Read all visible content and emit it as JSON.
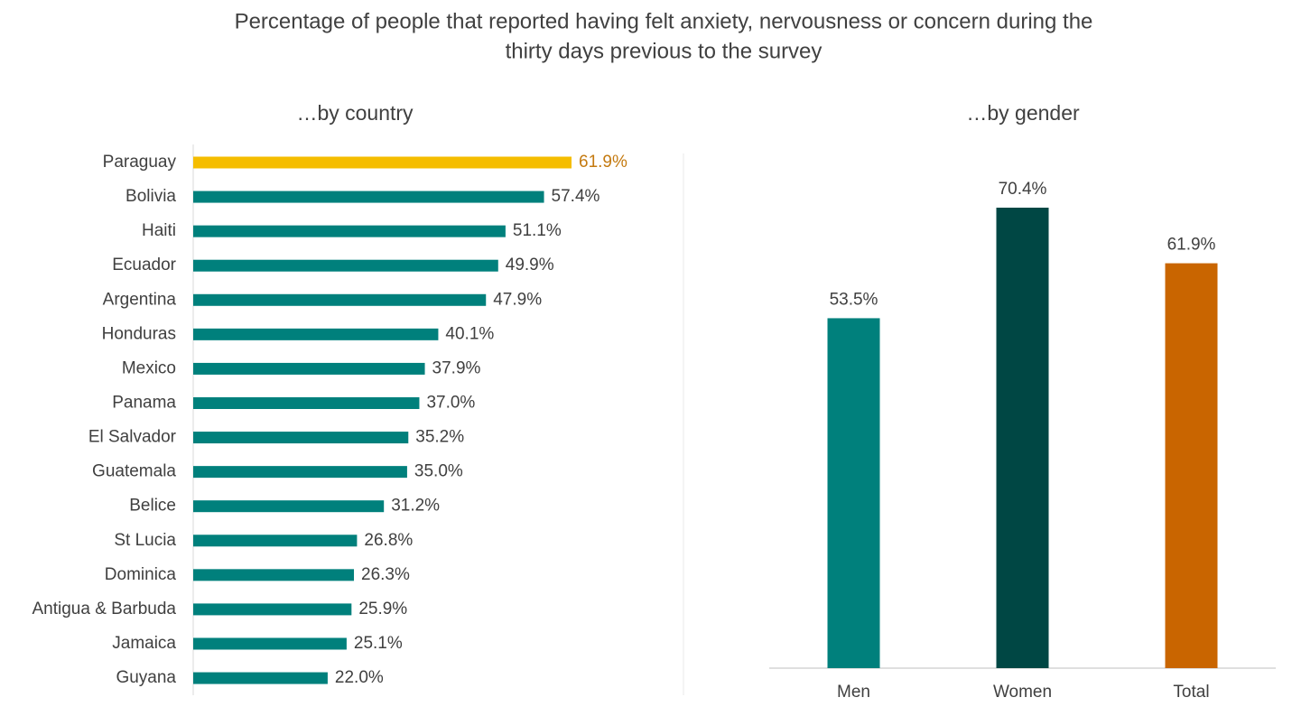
{
  "title": [
    "Percentage of people that reported having felt anxiety, nervousness or concern during the",
    "thirty days previous to the survey"
  ],
  "chart_data": [
    {
      "type": "barh",
      "subtitle": "…by country",
      "categories": [
        "Paraguay",
        "Bolivia",
        "Haiti",
        "Ecuador",
        "Argentina",
        "Honduras",
        "Mexico",
        "Panama",
        "El Salvador",
        "Guatemala",
        "Belice",
        "St Lucia",
        "Dominica",
        "Antigua & Barbuda",
        "Jamaica",
        "Guyana"
      ],
      "values": [
        61.9,
        57.4,
        51.1,
        49.9,
        47.9,
        40.1,
        37.9,
        37.0,
        35.2,
        35.0,
        31.2,
        26.8,
        26.3,
        25.9,
        25.1,
        22.0
      ],
      "value_labels": [
        "61.9%",
        "57.4%",
        "51.1%",
        "49.9%",
        "47.9%",
        "40.1%",
        "37.9%",
        "37.0%",
        "35.2%",
        "35.0%",
        "31.2%",
        "26.8%",
        "26.3%",
        "25.9%",
        "25.1%",
        "22.0%"
      ],
      "colors": [
        "#f5bd00",
        "#00807c",
        "#00807c",
        "#00807c",
        "#00807c",
        "#00807c",
        "#00807c",
        "#00807c",
        "#00807c",
        "#00807c",
        "#00807c",
        "#00807c",
        "#00807c",
        "#00807c",
        "#00807c",
        "#00807c"
      ],
      "value_label_colors": [
        "#c47a10",
        "#404040",
        "#404040",
        "#404040",
        "#404040",
        "#404040",
        "#404040",
        "#404040",
        "#404040",
        "#404040",
        "#404040",
        "#404040",
        "#404040",
        "#404040",
        "#404040",
        "#404040"
      ]
    },
    {
      "type": "bar",
      "subtitle": "…by gender",
      "categories": [
        "Men",
        "Women",
        "Total"
      ],
      "values": [
        53.5,
        70.4,
        61.9
      ],
      "value_labels": [
        "53.5%",
        "70.4%",
        "61.9%"
      ],
      "colors": [
        "#00807c",
        "#004744",
        "#c96500"
      ]
    }
  ]
}
